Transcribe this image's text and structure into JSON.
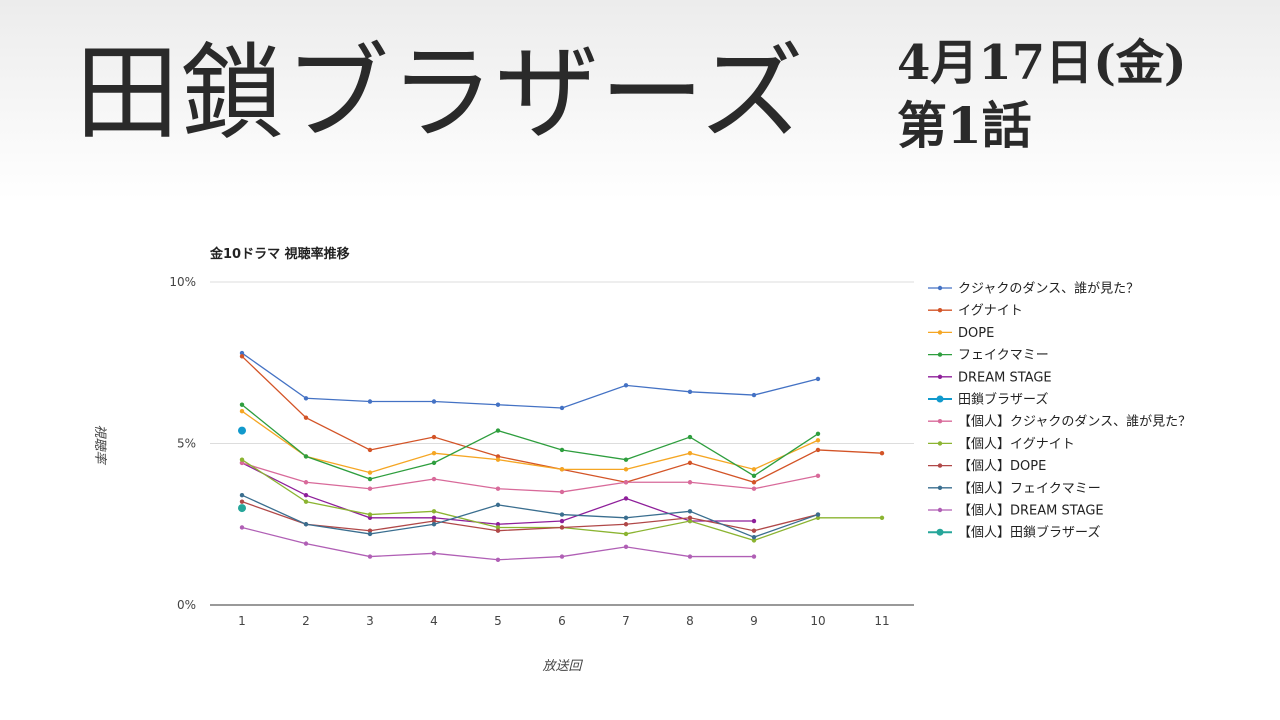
{
  "header": {
    "title": "田鎖ブラザーズ",
    "date": "4月17日(金)",
    "episode": "第1話"
  },
  "chart_data": {
    "type": "line",
    "title": "金10ドラマ 視聴率推移",
    "xlabel": "放送回",
    "ylabel": "視聴率",
    "categories": [
      "1",
      "2",
      "3",
      "4",
      "5",
      "6",
      "7",
      "8",
      "9",
      "10",
      "11"
    ],
    "ylim": [
      0,
      10
    ],
    "yticks": [
      {
        "value": 0,
        "label": "0%"
      },
      {
        "value": 5,
        "label": "5%"
      },
      {
        "value": 10,
        "label": "10%"
      }
    ],
    "legend_position": "right",
    "series": [
      {
        "name": "クジャクのダンス、誰が見た？",
        "color": "#4472c4",
        "values": [
          7.8,
          6.4,
          6.3,
          6.3,
          6.2,
          6.1,
          6.8,
          6.6,
          6.5,
          7.0,
          null
        ]
      },
      {
        "name": "イグナイト",
        "color": "#d35427",
        "values": [
          7.7,
          5.8,
          4.8,
          5.2,
          4.6,
          4.2,
          3.8,
          4.4,
          3.8,
          4.8,
          4.7
        ]
      },
      {
        "name": "DOPE",
        "color": "#f5a623",
        "values": [
          6.0,
          4.6,
          4.1,
          4.7,
          4.5,
          4.2,
          4.2,
          4.7,
          4.2,
          5.1,
          null
        ]
      },
      {
        "name": "フェイクマミー",
        "color": "#2e9e3e",
        "values": [
          6.2,
          4.6,
          3.9,
          4.4,
          5.4,
          4.8,
          4.5,
          5.2,
          4.0,
          5.3,
          null
        ]
      },
      {
        "name": "DREAM STAGE",
        "color": "#8e1f9a",
        "values": [
          4.4,
          3.4,
          2.7,
          2.7,
          2.5,
          2.6,
          3.3,
          2.6,
          2.6,
          null,
          null
        ]
      },
      {
        "name": "田鎖ブラザーズ",
        "color": "#1199cc",
        "emphasis": true,
        "values": [
          5.4,
          null,
          null,
          null,
          null,
          null,
          null,
          null,
          null,
          null,
          null
        ]
      },
      {
        "name": "【個人】クジャクのダンス、誰が見た？",
        "color": "#d86a9a",
        "values": [
          4.4,
          3.8,
          3.6,
          3.9,
          3.6,
          3.5,
          3.8,
          3.8,
          3.6,
          4.0,
          null
        ]
      },
      {
        "name": "【個人】イグナイト",
        "color": "#8bb431",
        "values": [
          4.5,
          3.2,
          2.8,
          2.9,
          2.4,
          2.4,
          2.2,
          2.6,
          2.0,
          2.7,
          2.7
        ]
      },
      {
        "name": "【個人】DOPE",
        "color": "#b04848",
        "values": [
          3.2,
          2.5,
          2.3,
          2.6,
          2.3,
          2.4,
          2.5,
          2.7,
          2.3,
          2.8,
          null
        ]
      },
      {
        "name": "【個人】フェイクマミー",
        "color": "#3a6e8f",
        "values": [
          3.4,
          2.5,
          2.2,
          2.5,
          3.1,
          2.8,
          2.7,
          2.9,
          2.1,
          2.8,
          null
        ]
      },
      {
        "name": "【個人】DREAM STAGE",
        "color": "#b05fb5",
        "values": [
          2.4,
          1.9,
          1.5,
          1.6,
          1.4,
          1.5,
          1.8,
          1.5,
          1.5,
          null,
          null
        ]
      },
      {
        "name": "【個人】田鎖ブラザーズ",
        "color": "#26a69a",
        "emphasis": true,
        "values": [
          3.0,
          null,
          null,
          null,
          null,
          null,
          null,
          null,
          null,
          null,
          null
        ]
      }
    ]
  }
}
